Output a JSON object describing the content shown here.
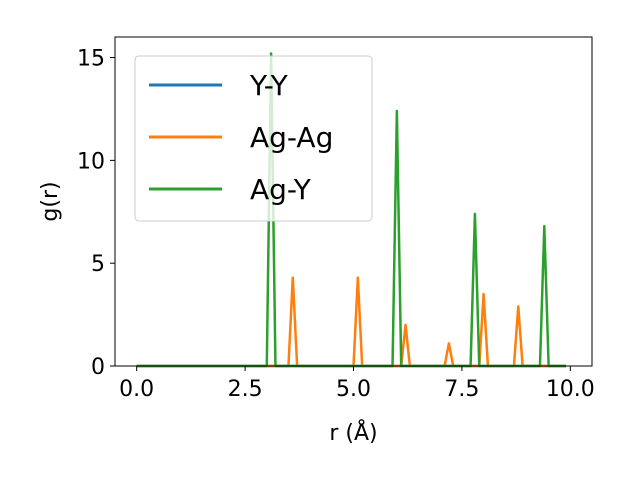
{
  "chart_data": {
    "type": "line",
    "xlabel": "r (Å)",
    "ylabel": "g(r)",
    "xlim": [
      -0.5,
      10.5
    ],
    "ylim": [
      0,
      16
    ],
    "xticks": [
      "0.0",
      "2.5",
      "5.0",
      "7.5",
      "10.0"
    ],
    "yticks": [
      "0",
      "5",
      "10",
      "15"
    ],
    "grid": false,
    "legend_position": "upper-left",
    "colors": {
      "Y-Y": "#1f77b4",
      "Ag-Ag": "#ff7f0e",
      "Ag-Y": "#2ca02c"
    },
    "series": [
      {
        "name": "Y-Y",
        "x": [
          0.0,
          9.9
        ],
        "y": [
          0,
          0
        ]
      },
      {
        "name": "Ag-Ag",
        "x": [
          0.0,
          3.5,
          3.6,
          3.7,
          5.0,
          5.1,
          5.2,
          6.1,
          6.2,
          6.3,
          7.1,
          7.2,
          7.3,
          7.9,
          8.0,
          8.1,
          8.7,
          8.8,
          8.9,
          9.9
        ],
        "y": [
          0,
          0,
          4.3,
          0,
          0,
          4.3,
          0,
          0,
          2.0,
          0,
          0,
          1.1,
          0,
          0,
          3.5,
          0,
          0,
          2.9,
          0,
          0
        ]
      },
      {
        "name": "Ag-Y",
        "x": [
          0.0,
          3.0,
          3.1,
          3.2,
          5.9,
          6.0,
          6.1,
          7.7,
          7.8,
          7.9,
          9.3,
          9.4,
          9.5,
          9.9
        ],
        "y": [
          0,
          0,
          15.2,
          0,
          0,
          12.4,
          0,
          0,
          7.4,
          0,
          0,
          6.8,
          0,
          0
        ]
      }
    ]
  }
}
